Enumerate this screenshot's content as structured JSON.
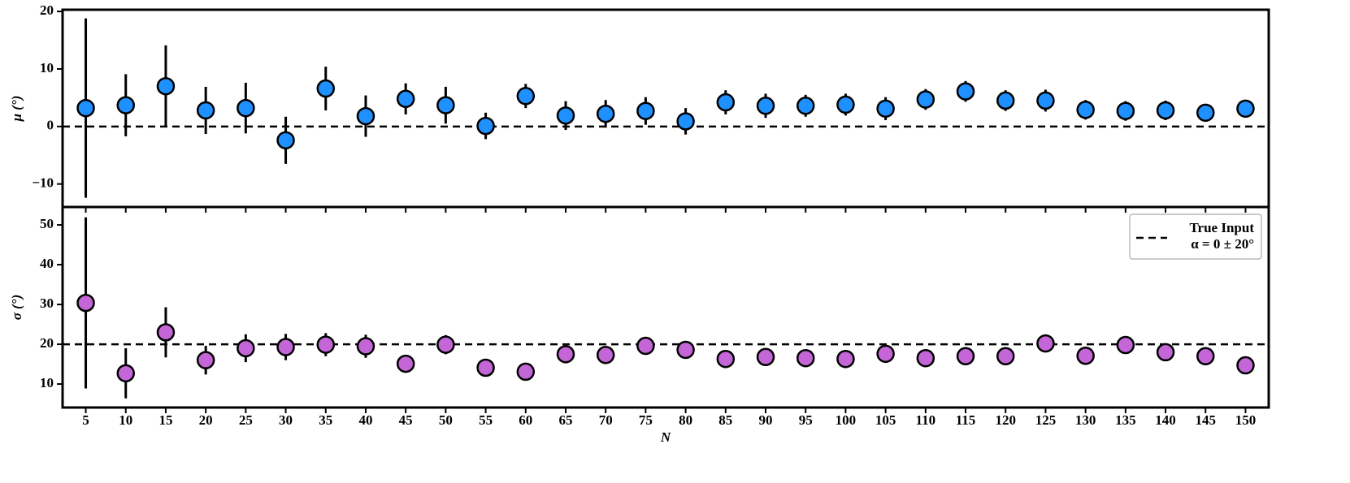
{
  "chart_data": [
    {
      "type": "errorbar",
      "ylabel": "μ (°)",
      "color": "#1e90ff",
      "x": [
        5,
        10,
        15,
        20,
        25,
        30,
        35,
        40,
        45,
        50,
        55,
        60,
        65,
        70,
        75,
        80,
        85,
        90,
        95,
        100,
        105,
        110,
        115,
        120,
        125,
        130,
        135,
        140,
        145,
        150
      ],
      "values": [
        3.2,
        3.7,
        7.0,
        2.8,
        3.2,
        -2.4,
        6.6,
        1.8,
        4.8,
        3.7,
        0.1,
        5.3,
        1.9,
        2.2,
        2.7,
        0.9,
        4.2,
        3.6,
        3.6,
        3.8,
        3.1,
        4.7,
        6.1,
        4.5,
        4.5,
        2.9,
        2.7,
        2.8,
        2.4,
        3.1
      ],
      "errors": [
        15.6,
        5.4,
        7.1,
        4.1,
        4.4,
        4.1,
        3.8,
        3.6,
        2.7,
        3.2,
        2.3,
        2.1,
        2.5,
        2.4,
        2.4,
        2.3,
        2.1,
        2.1,
        1.9,
        1.9,
        2.0,
        1.8,
        1.8,
        1.8,
        1.9,
        1.7,
        1.7,
        1.7,
        1.5,
        1.4
      ],
      "reference": 0,
      "xlim": [
        2.1,
        152.9
      ],
      "ylim": [
        -14,
        20.3
      ],
      "yticks": [
        {
          "value": -10,
          "label": "−10"
        },
        0,
        10,
        20
      ]
    },
    {
      "type": "errorbar",
      "ylabel": "σ (°)",
      "xlabel": "N",
      "color": "#c465d8",
      "x": [
        5,
        10,
        15,
        20,
        25,
        30,
        35,
        40,
        45,
        50,
        55,
        60,
        65,
        70,
        75,
        80,
        85,
        90,
        95,
        100,
        105,
        110,
        115,
        120,
        125,
        130,
        135,
        140,
        145,
        150
      ],
      "values": [
        30.4,
        12.7,
        23.0,
        16.0,
        19.0,
        19.3,
        19.9,
        19.5,
        15.1,
        19.9,
        14.1,
        13.1,
        17.5,
        17.3,
        19.6,
        18.6,
        16.3,
        16.8,
        16.5,
        16.3,
        17.6,
        16.5,
        17.0,
        17.0,
        20.2,
        17.1,
        19.8,
        18.0,
        17.0,
        14.7
      ],
      "errors": [
        21.5,
        6.3,
        6.3,
        3.6,
        3.5,
        3.3,
        2.9,
        2.9,
        2.0,
        2.4,
        1.5,
        1.3,
        1.5,
        1.5,
        1.5,
        1.5,
        1.4,
        1.4,
        1.3,
        1.3,
        1.3,
        1.2,
        1.2,
        1.2,
        1.3,
        1.2,
        1.2,
        1.2,
        1.1,
        1.1
      ],
      "reference": 20,
      "legend": {
        "corner": "upper right",
        "labels": [
          "True Input",
          "α = 0 ± 20°"
        ]
      },
      "xlim": [
        2.1,
        152.9
      ],
      "ylim": [
        4.1,
        54.5
      ],
      "xticks": [
        5,
        10,
        15,
        20,
        25,
        30,
        35,
        40,
        45,
        50,
        55,
        60,
        65,
        70,
        75,
        80,
        85,
        90,
        95,
        100,
        105,
        110,
        115,
        120,
        125,
        130,
        135,
        140,
        145,
        150
      ],
      "yticks": [
        10,
        20,
        30,
        40,
        50
      ]
    }
  ]
}
